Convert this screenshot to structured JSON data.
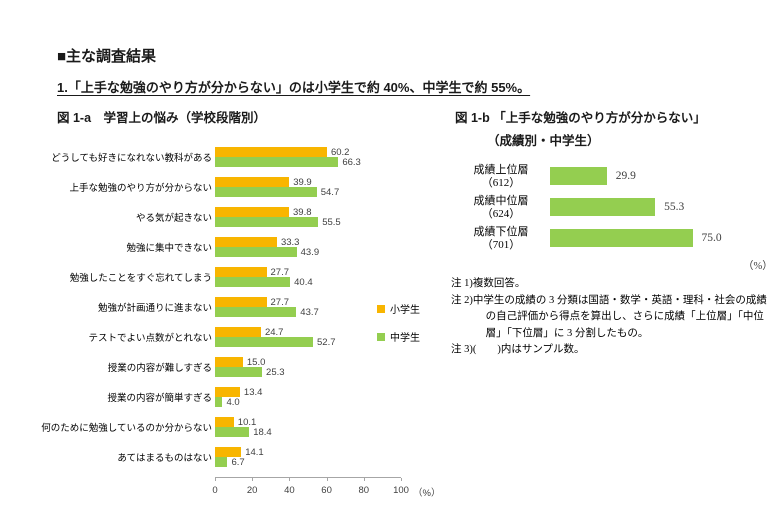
{
  "page": {
    "heading": "■主な調査結果",
    "subtitle": "1.「上手な勉強のやり方が分からない」のは小学生で約 40%、中学生で約 55%。"
  },
  "chart_data": [
    {
      "type": "bar",
      "orientation": "horizontal",
      "title": "図 1-a　学習上の悩み（学校段階別）",
      "categories": [
        "どうしても好きになれない教科がある",
        "上手な勉強のやり方が分からない",
        "やる気が起きない",
        "勉強に集中できない",
        "勉強したことをすぐ忘れてしまう",
        "勉強が計画通りに進まない",
        "テストでよい点数がとれない",
        "授業の内容が難しすぎる",
        "授業の内容が簡単すぎる",
        "何のために勉強しているのか分からない",
        "あてはまるものはない"
      ],
      "series": [
        {
          "name": "小学生",
          "color": "#F8B500",
          "values": [
            60.2,
            39.9,
            39.8,
            33.3,
            27.7,
            27.7,
            24.7,
            15.0,
            13.4,
            10.1,
            14.1
          ]
        },
        {
          "name": "中学生",
          "color": "#94CE50",
          "values": [
            66.3,
            54.7,
            55.5,
            43.9,
            40.4,
            43.7,
            52.7,
            25.3,
            4.0,
            18.4,
            6.7
          ]
        }
      ],
      "xlim": [
        0,
        100
      ],
      "x_ticks": [
        0,
        20,
        40,
        60,
        80,
        100
      ],
      "x_unit": "（%）",
      "grid": false,
      "legend_position": "right"
    },
    {
      "type": "bar",
      "orientation": "horizontal",
      "title": "図 1-b 「上手な勉強のやり方が分からない」",
      "subtitle": "（成績別・中学生）",
      "categories": [
        "成績上位層",
        "成績中位層",
        "成績下位層"
      ],
      "category_counts": [
        "（612）",
        "（624）",
        "（701）"
      ],
      "values": [
        29.9,
        55.3,
        75.0
      ],
      "color": "#94CE50",
      "xlim": [
        0,
        100
      ],
      "x_unit": "（%）",
      "grid": false
    }
  ],
  "notes": [
    "注 1)複数回答。",
    "注 2)中学生の成績の 3 分類は国語・数学・英語・理科・社会の成績の自己評価から得点を算出し、さらに成績「上位層」「中位層」「下位層」に 3 分割したもの。",
    "注 3)(　　)内はサンプル数。"
  ]
}
